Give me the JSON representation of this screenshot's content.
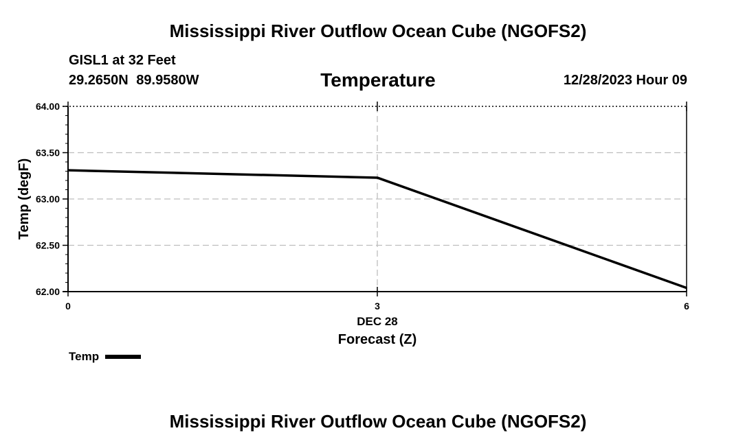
{
  "header": {
    "title": "Mississippi River Outflow Ocean Cube (NGOFS2)",
    "station": "GISL1 at 32 Feet",
    "coordinates": "29.2650N  89.9580W",
    "datetime": "12/28/2023 Hour 09"
  },
  "footer": {
    "title": "Mississippi River Outflow Ocean Cube (NGOFS2)"
  },
  "chart_data": {
    "type": "line",
    "title": "Temperature",
    "xlabel": "Forecast (Z)",
    "ylabel": "Temp (degF)",
    "x_date_label": "DEC 28",
    "x": [
      0,
      3,
      6
    ],
    "x_ticks": [
      "0",
      "3",
      "6"
    ],
    "xlim": [
      0,
      6
    ],
    "ylim": [
      62.0,
      64.0
    ],
    "y_ticks": [
      "62.00",
      "62.50",
      "63.00",
      "63.50",
      "64.00"
    ],
    "series": [
      {
        "name": "Temp",
        "values": [
          63.31,
          63.23,
          62.04
        ],
        "color": "#000000"
      }
    ],
    "grid": true,
    "legend": "bottom-left"
  }
}
